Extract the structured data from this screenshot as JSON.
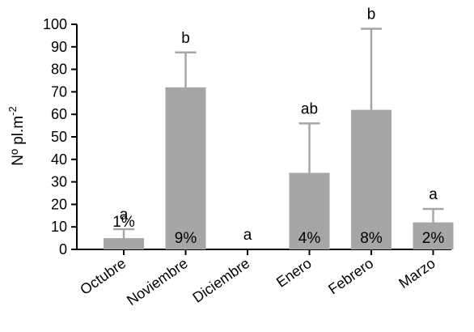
{
  "chart_data": {
    "type": "bar",
    "title": "",
    "xlabel": "",
    "ylabel": "Nº pl.m",
    "ylabel_superscript": "-2",
    "ylim": [
      0,
      100
    ],
    "yticks": [
      0,
      10,
      20,
      30,
      40,
      50,
      60,
      70,
      80,
      90,
      100
    ],
    "categories": [
      "Octubre",
      "Noviembre",
      "Diciembre",
      "Enero",
      "Febrero",
      "Marzo"
    ],
    "values": [
      5,
      72,
      0,
      34,
      62,
      12
    ],
    "error_upper": [
      9,
      87.5,
      0,
      56,
      98,
      18
    ],
    "significance_letters": [
      "a",
      "b",
      "a",
      "ab",
      "b",
      "a"
    ],
    "bar_labels": [
      "1%",
      "9%",
      "",
      "4%",
      "8%",
      "2%"
    ],
    "bar_color": "#a6a6a6",
    "errorbar_color": "#a6a6a6",
    "grid": false
  }
}
